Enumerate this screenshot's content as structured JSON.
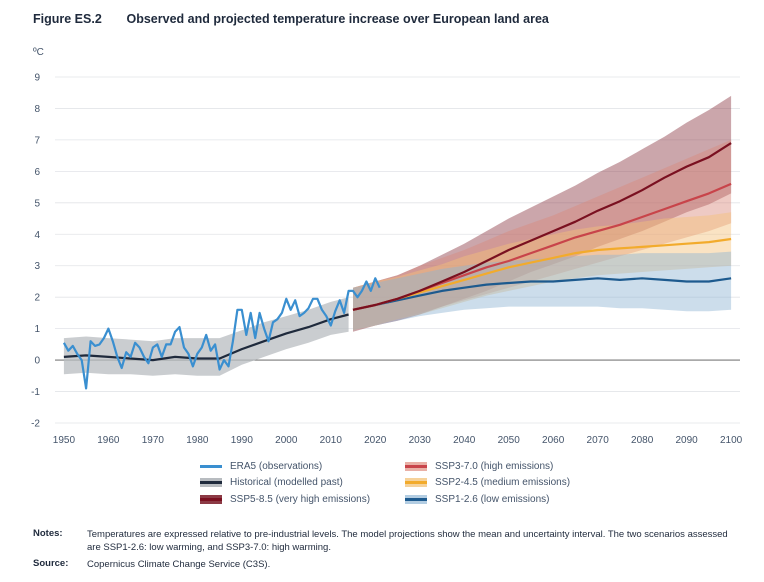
{
  "figure": {
    "label": "Figure ES.2",
    "title": "Observed and projected temperature increase over European land area"
  },
  "chart_data": {
    "type": "line",
    "title": "Observed and projected temperature increase over European land area",
    "ylabel": "ºC",
    "xlabel": "",
    "xlim": [
      1948,
      2102
    ],
    "ylim": [
      -2,
      9
    ],
    "x_ticks": [
      1950,
      1960,
      1970,
      1980,
      1990,
      2000,
      2010,
      2020,
      2030,
      2040,
      2050,
      2060,
      2070,
      2080,
      2090,
      2100
    ],
    "y_ticks": [
      -2,
      -1,
      0,
      1,
      2,
      3,
      4,
      5,
      6,
      7,
      8,
      9
    ],
    "grid": "horizontal",
    "legend_position": "bottom",
    "series": [
      {
        "name": "ERA5 (observations)",
        "color": "#3a8fd0",
        "kind": "observed",
        "x": [
          1950,
          1951,
          1952,
          1953,
          1954,
          1955,
          1956,
          1957,
          1958,
          1959,
          1960,
          1961,
          1962,
          1963,
          1964,
          1965,
          1966,
          1967,
          1968,
          1969,
          1970,
          1971,
          1972,
          1973,
          1974,
          1975,
          1976,
          1977,
          1978,
          1979,
          1980,
          1981,
          1982,
          1983,
          1984,
          1985,
          1986,
          1987,
          1988,
          1989,
          1990,
          1991,
          1992,
          1993,
          1994,
          1995,
          1996,
          1997,
          1998,
          1999,
          2000,
          2001,
          2002,
          2003,
          2004,
          2005,
          2006,
          2007,
          2008,
          2009,
          2010,
          2011,
          2012,
          2013,
          2014,
          2015,
          2016,
          2017,
          2018,
          2019,
          2020,
          2021
        ],
        "values": [
          0.55,
          0.3,
          0.45,
          0.2,
          0.0,
          -0.9,
          0.6,
          0.45,
          0.5,
          0.7,
          1.0,
          0.6,
          0.1,
          -0.25,
          0.25,
          0.1,
          0.55,
          0.4,
          0.1,
          -0.1,
          0.4,
          0.5,
          0.1,
          0.5,
          0.5,
          0.9,
          1.05,
          0.4,
          0.2,
          -0.2,
          0.2,
          0.4,
          0.8,
          0.3,
          0.5,
          -0.3,
          0.0,
          -0.2,
          0.6,
          1.6,
          1.6,
          0.8,
          1.5,
          0.7,
          1.5,
          1.0,
          0.6,
          1.2,
          1.3,
          1.5,
          1.95,
          1.6,
          1.9,
          1.4,
          1.5,
          1.65,
          1.95,
          1.95,
          1.6,
          1.4,
          1.1,
          1.55,
          1.9,
          1.5,
          2.2,
          2.2,
          2.0,
          2.2,
          2.5,
          2.2,
          2.6,
          2.3
        ]
      },
      {
        "name": "Historical (modelled past)",
        "color": "#1f2a3c",
        "band": "#b8bcc0",
        "kind": "historical",
        "x": [
          1950,
          1955,
          1960,
          1965,
          1970,
          1975,
          1980,
          1985,
          1990,
          1995,
          2000,
          2005,
          2010,
          2014
        ],
        "values": [
          0.1,
          0.15,
          0.1,
          0.05,
          0.0,
          0.1,
          0.05,
          0.05,
          0.35,
          0.6,
          0.85,
          1.05,
          1.3,
          1.45
        ],
        "band_low": [
          -0.45,
          -0.4,
          -0.45,
          -0.45,
          -0.5,
          -0.45,
          -0.5,
          -0.5,
          -0.15,
          0.1,
          0.35,
          0.55,
          0.8,
          0.9
        ],
        "band_high": [
          0.7,
          0.75,
          0.7,
          0.65,
          0.6,
          0.7,
          0.7,
          0.7,
          0.95,
          1.2,
          1.4,
          1.6,
          1.85,
          2.0
        ]
      },
      {
        "name": "SSP5-8.5 (very high emissions)",
        "color": "#7a1020",
        "band": "#8c3a45",
        "kind": "projection",
        "x": [
          2015,
          2020,
          2025,
          2030,
          2035,
          2040,
          2045,
          2050,
          2055,
          2060,
          2065,
          2070,
          2075,
          2080,
          2085,
          2090,
          2095,
          2100
        ],
        "values": [
          1.6,
          1.75,
          1.95,
          2.2,
          2.5,
          2.8,
          3.15,
          3.5,
          3.8,
          4.1,
          4.4,
          4.75,
          5.05,
          5.4,
          5.8,
          6.15,
          6.45,
          6.9
        ],
        "band_low": [
          0.9,
          1.1,
          1.25,
          1.45,
          1.7,
          1.95,
          2.2,
          2.5,
          2.8,
          3.05,
          3.3,
          3.6,
          3.85,
          4.1,
          4.4,
          4.7,
          4.95,
          5.3
        ],
        "band_high": [
          2.3,
          2.5,
          2.7,
          3.0,
          3.35,
          3.7,
          4.1,
          4.5,
          4.85,
          5.2,
          5.55,
          5.95,
          6.3,
          6.7,
          7.1,
          7.55,
          7.95,
          8.4
        ]
      },
      {
        "name": "SSP3-7.0 (high emissions)",
        "color": "#c8444a",
        "band": "#d98a7c",
        "kind": "projection",
        "x": [
          2015,
          2020,
          2025,
          2030,
          2035,
          2040,
          2045,
          2050,
          2055,
          2060,
          2065,
          2070,
          2075,
          2080,
          2085,
          2090,
          2095,
          2100
        ],
        "values": [
          1.6,
          1.75,
          1.95,
          2.2,
          2.45,
          2.7,
          2.95,
          3.15,
          3.4,
          3.65,
          3.9,
          4.1,
          4.3,
          4.55,
          4.8,
          5.05,
          5.3,
          5.6
        ],
        "band_low": [
          0.95,
          1.1,
          1.3,
          1.5,
          1.7,
          1.9,
          2.1,
          2.3,
          2.5,
          2.7,
          2.9,
          3.1,
          3.3,
          3.5,
          3.7,
          3.9,
          4.1,
          4.35
        ],
        "band_high": [
          2.3,
          2.5,
          2.7,
          3.0,
          3.25,
          3.5,
          3.8,
          4.1,
          4.35,
          4.6,
          4.9,
          5.2,
          5.5,
          5.8,
          6.1,
          6.4,
          6.7,
          7.0
        ]
      },
      {
        "name": "SSP2-4.5 (medium emissions)",
        "color": "#f2ab2c",
        "band": "#f4c27a",
        "kind": "projection",
        "x": [
          2015,
          2020,
          2025,
          2030,
          2035,
          2040,
          2045,
          2050,
          2055,
          2060,
          2065,
          2070,
          2075,
          2080,
          2085,
          2090,
          2095,
          2100
        ],
        "values": [
          1.6,
          1.75,
          1.95,
          2.15,
          2.35,
          2.55,
          2.75,
          2.95,
          3.1,
          3.25,
          3.4,
          3.5,
          3.55,
          3.6,
          3.65,
          3.7,
          3.75,
          3.85
        ],
        "band_low": [
          0.95,
          1.1,
          1.3,
          1.45,
          1.65,
          1.85,
          2.05,
          2.2,
          2.35,
          2.5,
          2.6,
          2.7,
          2.75,
          2.8,
          2.85,
          2.9,
          2.95,
          3.0
        ],
        "band_high": [
          2.3,
          2.5,
          2.65,
          2.85,
          3.05,
          3.3,
          3.5,
          3.7,
          3.85,
          4.0,
          4.15,
          4.25,
          4.3,
          4.4,
          4.5,
          4.55,
          4.6,
          4.7
        ]
      },
      {
        "name": "SSP1-2.6 (low emissions)",
        "color": "#1d5a8e",
        "band": "#8fb4d2",
        "kind": "projection",
        "x": [
          2015,
          2020,
          2025,
          2030,
          2035,
          2040,
          2045,
          2050,
          2055,
          2060,
          2065,
          2070,
          2075,
          2080,
          2085,
          2090,
          2095,
          2100
        ],
        "values": [
          1.6,
          1.75,
          1.9,
          2.05,
          2.2,
          2.3,
          2.4,
          2.45,
          2.5,
          2.5,
          2.55,
          2.6,
          2.55,
          2.6,
          2.55,
          2.5,
          2.5,
          2.6
        ],
        "band_low": [
          0.95,
          1.1,
          1.25,
          1.4,
          1.5,
          1.6,
          1.65,
          1.7,
          1.7,
          1.7,
          1.7,
          1.7,
          1.65,
          1.65,
          1.6,
          1.55,
          1.55,
          1.6
        ],
        "band_high": [
          2.3,
          2.45,
          2.6,
          2.75,
          2.9,
          3.0,
          3.1,
          3.15,
          3.2,
          3.25,
          3.3,
          3.35,
          3.35,
          3.4,
          3.4,
          3.4,
          3.4,
          3.45
        ]
      }
    ]
  },
  "legend": {
    "left": [
      {
        "label": "ERA5 (observations)",
        "color": "#3a8fd0",
        "band": ""
      },
      {
        "label": "Historical (modelled past)",
        "color": "#1f2a3c",
        "band": "#b8bcc0"
      },
      {
        "label": "SSP5-8.5 (very high emissions)",
        "color": "#7a1020",
        "band": "#8c3a45"
      }
    ],
    "right": [
      {
        "label": "SSP3-7.0 (high emissions)",
        "color": "#c8444a",
        "band": "#e9b0a6"
      },
      {
        "label": "SSP2-4.5 (medium emissions)",
        "color": "#f2ab2c",
        "band": "#f6d29a"
      },
      {
        "label": "SSP1-2.6 (low emissions)",
        "color": "#1d5a8e",
        "band": "#b3cde2"
      }
    ]
  },
  "notes": {
    "notes_label": "Notes:",
    "notes_text": "Temperatures are expressed relative to pre-industrial levels. The model projections show the mean and uncertainty interval. The two scenarios assessed are SSP1-2.6: low warming, and SSP3-7.0: high warming.",
    "source_label": "Source:",
    "source_text": "Copernicus Climate Change Service (C3S)."
  }
}
